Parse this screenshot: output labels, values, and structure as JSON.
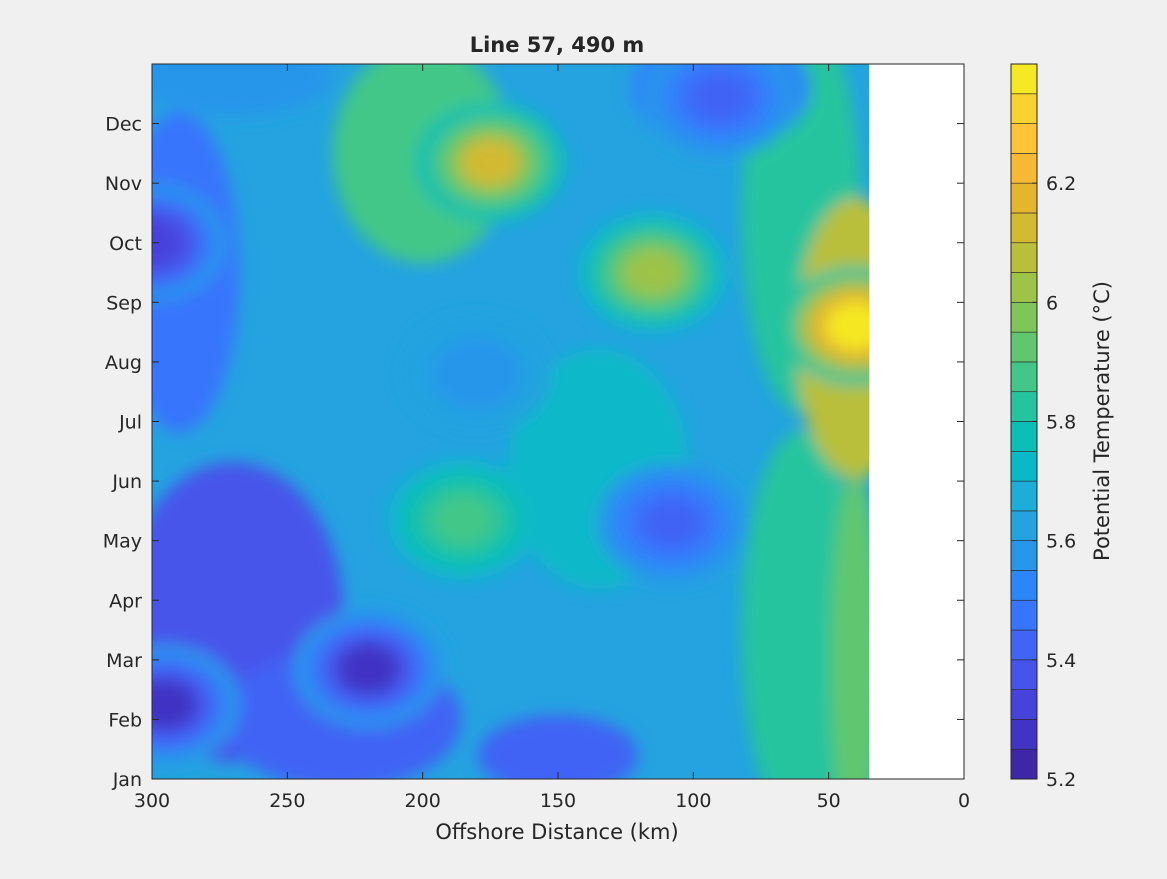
{
  "chart_data": {
    "type": "heatmap",
    "subtype": "filled-contour",
    "title": "Line 57, 490 m",
    "xlabel": "Offshore Distance (km)",
    "ylabel": "",
    "x_reversed": true,
    "xlim": [
      0,
      300
    ],
    "ylim": [
      0,
      12
    ],
    "xticks": [
      300,
      250,
      200,
      150,
      100,
      50,
      0
    ],
    "xtick_labels": [
      "300",
      "250",
      "200",
      "150",
      "100",
      "50",
      "0"
    ],
    "yticks": [
      0,
      1,
      2,
      3,
      4,
      5,
      6,
      7,
      8,
      9,
      10,
      11
    ],
    "ytick_labels": [
      "Jan",
      "Feb",
      "Mar",
      "Apr",
      "May",
      "Jun",
      "Jul",
      "Aug",
      "Sep",
      "Oct",
      "Nov",
      "Dec"
    ],
    "data_x_extent": [
      35,
      300
    ],
    "colorbar": {
      "label": "Potential Temperature (°C)",
      "clim": [
        5.2,
        6.4
      ],
      "levels": [
        5.2,
        5.25,
        5.3,
        5.35,
        5.4,
        5.45,
        5.5,
        5.55,
        5.6,
        5.65,
        5.7,
        5.75,
        5.8,
        5.85,
        5.9,
        5.95,
        6.0,
        6.05,
        6.1,
        6.15,
        6.2,
        6.25,
        6.3,
        6.35,
        6.4
      ],
      "ticks": [
        5.2,
        5.4,
        5.6,
        5.8,
        6.0,
        6.2
      ],
      "tick_labels": [
        "5.2",
        "5.4",
        "5.6",
        "5.8",
        "6",
        "6.2"
      ],
      "colormap": "parula",
      "colors": [
        "#3e26a8",
        "#4133c3",
        "#4643db",
        "#4654eb",
        "#4164f5",
        "#3875fd",
        "#2d86f8",
        "#2896eb",
        "#24a3e0",
        "#1caed8",
        "#09b9c8",
        "#0bbfb4",
        "#25c49e",
        "#43c788",
        "#61c76f",
        "#7fc65a",
        "#9dc349",
        "#b9bf3b",
        "#d2ba31",
        "#e6b52e",
        "#f7b833",
        "#fdc438",
        "#f9d430",
        "#f5e824"
      ]
    },
    "features": [
      {
        "x": 300,
        "y": 9.0,
        "value": 5.3
      },
      {
        "x": 295,
        "y": 1.25,
        "value": 5.28
      },
      {
        "x": 220,
        "y": 1.85,
        "value": 5.25
      },
      {
        "x": 175,
        "y": 10.35,
        "value": 6.1
      },
      {
        "x": 115,
        "y": 8.5,
        "value": 6.0
      },
      {
        "x": 185,
        "y": 4.35,
        "value": 5.88
      },
      {
        "x": 108,
        "y": 4.3,
        "value": 5.42
      },
      {
        "x": 180,
        "y": 6.8,
        "value": 5.55
      },
      {
        "x": 40,
        "y": 7.6,
        "value": 6.37
      },
      {
        "x": 90,
        "y": 11.45,
        "value": 5.4
      }
    ]
  }
}
